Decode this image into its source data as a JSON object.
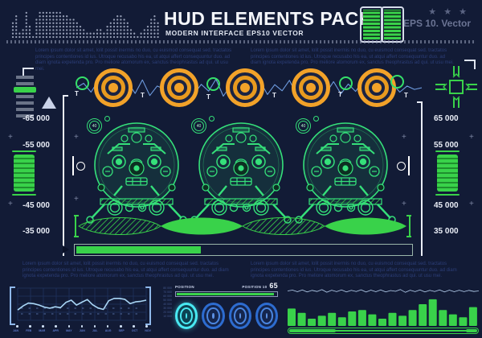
{
  "colors": {
    "background": "#121b36",
    "green": "#39d24a",
    "face_green": "#35e07a",
    "orange": "#f2a229",
    "wave_blue": "#6e9ce0",
    "line_blue": "#a9d6f5",
    "cyan": "#49e8f2",
    "target_blue": "#2d6cd0",
    "text_navy": "#2c3e78",
    "white": "#e9edf6"
  },
  "header": {
    "title": "HUD ELEMENTS PACK",
    "subtitle": "MODERN INTERFACE EPS10 VECTOR",
    "stars": "★ ★ ★",
    "eps_badge": "EPS 10. Vector"
  },
  "paragraphs": {
    "top_left": "Lorem ipsum dolor sit amet, lolit possit inermis no duo, cu euismod consequat sed. tractatos principes contentiones id ius. Utroque recusabo his ea, ut atqui affert consequuntur duo. ad diam ignota expetenda pro. Pro meliore atomorum ex, sanctus theophrastus ad qui. ut usu mei.",
    "top_right": "Lorem ipsum dolor sit amet, lolit possit inermis no duo, cu euismod consequat sed. tractatos principes contentiones id ius. Utroque recusabo his ea, ut atqui affert consequuntur duo. ad diam ignota expetenda pro. Pro meliore atomorum ex, sanctus theophrastus ad qui. ut usu mei.",
    "mid_left": "Lorem ipsum dolor sit amet, lolit possit inermis no duo, cu euismod consequat sed. tractatos principes contentiones id ius. Utroque recusabo his ea, ut atqui affert consequuntur duo. ad diam ignota expetenda pro. Pro meliore atomorum ex, sanctus theophrastus ad qui. ut usu mei.",
    "mid_right": "Lorem ipsum dolor sit amet, lolit possit inermis no duo, cu euismod consequat sed. tractatos principes contentiones id ius. Utroque recusabo his ea, ut atqui affert consequuntur duo. ad diam ignota expetenda pro. Pro meliore atomorum ex, sanctus theophrastus ad qui. ut usu mei."
  },
  "wave_row": {
    "tick_label": "T"
  },
  "plus_mark": "+",
  "left_scale": {
    "labels": [
      "-65 000",
      "-55 000",
      "-45 000",
      "-35 000"
    ]
  },
  "right_scale": {
    "labels": [
      "65 000",
      "55 000",
      "45 000",
      "35 000"
    ]
  },
  "gauges": {
    "badge_value": "40"
  },
  "position_panel": {
    "label_left": "POSITION",
    "label_right": "POSITION 10",
    "value": "65"
  },
  "chart_data": [
    {
      "type": "line",
      "name": "monthly-line-chart",
      "categories": [
        "JAN",
        "FEB",
        "MAR",
        "APR",
        "MAY",
        "JUN",
        "JUL",
        "AUG",
        "SEP",
        "OCT",
        "NOV"
      ],
      "values": [
        30,
        44,
        54,
        52,
        47,
        40,
        36,
        41,
        38,
        56,
        64,
        47,
        57,
        66,
        48,
        37,
        32,
        62,
        70,
        70,
        67,
        52,
        58,
        60,
        64
      ],
      "ylim": [
        0,
        100
      ],
      "grid": true,
      "legend": "none",
      "right_axis_labels": [
        "80 000",
        "70 000",
        "60 000",
        "50 000",
        "40 000",
        "30 000",
        "20 000",
        "10 000"
      ]
    },
    {
      "type": "bar",
      "name": "equalizer-bars",
      "values": [
        60,
        45,
        25,
        35,
        45,
        30,
        50,
        55,
        40,
        25,
        45,
        35,
        55,
        75,
        92,
        55,
        40,
        30,
        65
      ],
      "ylim": [
        0,
        100
      ],
      "grid": false
    },
    {
      "type": "line",
      "name": "audio-waveform",
      "values": [
        50,
        63,
        37,
        71,
        29,
        58,
        44,
        67,
        33,
        73,
        27,
        55,
        46,
        64,
        36,
        69,
        31,
        60,
        40,
        75,
        25,
        57,
        43,
        66,
        34,
        70,
        30,
        59,
        41,
        72,
        28,
        56,
        44,
        65,
        35,
        68,
        32,
        61,
        39,
        71,
        29,
        58,
        42,
        63,
        37,
        55,
        45,
        50
      ],
      "ylim": [
        0,
        100
      ]
    },
    {
      "type": "line",
      "name": "noise-waveform",
      "values": [
        50,
        58,
        42,
        60,
        40,
        55,
        45,
        62,
        38,
        57,
        43,
        59,
        41,
        56,
        44,
        61,
        39,
        58,
        42,
        60,
        40,
        54,
        46,
        63,
        37,
        57,
        43,
        59,
        41,
        56,
        44,
        60,
        40,
        58,
        42,
        57,
        43,
        55,
        45,
        50
      ],
      "ylim": [
        0,
        100
      ]
    },
    {
      "type": "bar",
      "name": "header-dot-equalizer",
      "values": [
        5,
        7,
        2,
        3,
        8,
        4,
        1,
        6,
        8,
        8,
        8,
        8,
        8,
        8,
        8,
        7,
        7,
        6,
        6,
        5,
        4,
        3,
        2,
        2,
        2,
        3,
        3,
        2,
        4,
        5,
        6,
        7,
        7,
        6,
        5,
        3,
        2,
        1,
        2,
        3,
        4,
        6,
        7,
        5
      ],
      "ylim": [
        0,
        8
      ]
    }
  ]
}
